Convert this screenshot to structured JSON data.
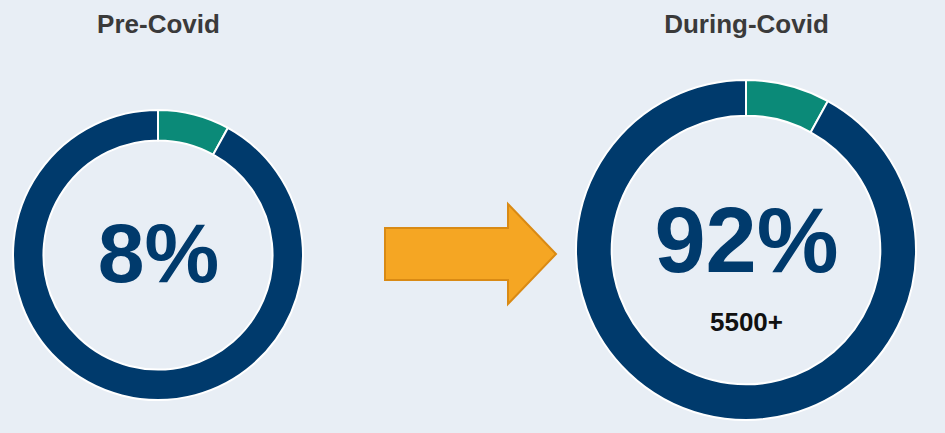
{
  "chart_data": [
    {
      "type": "pie",
      "title": "Pre-Covid",
      "values": [
        8,
        92
      ],
      "colors": [
        "#0b8a78",
        "#003a6c"
      ],
      "center_label": "8%"
    },
    {
      "type": "pie",
      "title": "During-Covid",
      "values": [
        8,
        92
      ],
      "colors": [
        "#0b8a78",
        "#003a6c"
      ],
      "center_label": "92%",
      "center_note": "5500+"
    }
  ]
}
